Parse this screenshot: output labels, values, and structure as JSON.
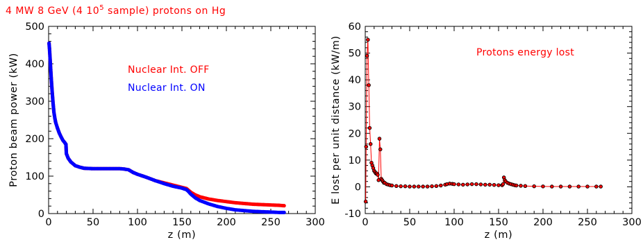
{
  "page_title": "4 MW 8 GeV (4 10",
  "page_title_sup": "5",
  "page_title_tail": " sample) protons on Hg",
  "colors": {
    "red": "#ff0000",
    "blue": "#0000ff",
    "black": "#000000",
    "title": "#ff0000"
  },
  "chart_data": [
    {
      "type": "scatter",
      "xlabel": "z (m)",
      "ylabel": "Proton beam power (kW)",
      "xlim": [
        0,
        300
      ],
      "ylim": [
        0,
        500
      ],
      "xticks": [
        0,
        50,
        100,
        150,
        200,
        250,
        300
      ],
      "yticks": [
        0,
        100,
        200,
        300,
        400,
        500
      ],
      "grid": false,
      "legend_placement": "upper-right",
      "series": [
        {
          "name": "Nuclear Int. OFF",
          "color": "#ff0000",
          "x": [
            0.5,
            1,
            2,
            3,
            4,
            5,
            6,
            7,
            8,
            10,
            12,
            14,
            16,
            18,
            19.5,
            20,
            21,
            22,
            25,
            30,
            35,
            40,
            50,
            60,
            70,
            80,
            85,
            90,
            95,
            100,
            110,
            120,
            130,
            140,
            150,
            155,
            157,
            160,
            165,
            170,
            180,
            190,
            200,
            210,
            220,
            230,
            240,
            250,
            260,
            265
          ],
          "y": [
            455,
            440,
            400,
            360,
            325,
            295,
            270,
            255,
            243,
            228,
            215,
            205,
            196,
            190,
            185,
            160,
            154,
            148,
            138,
            128,
            124,
            121,
            120,
            120,
            120,
            120,
            119,
            117,
            110,
            105,
            97,
            88,
            82,
            76,
            70,
            67,
            63,
            57,
            50,
            45,
            39,
            35,
            32,
            29,
            27,
            25,
            24,
            23,
            22,
            21
          ]
        },
        {
          "name": "Nuclear Int. ON",
          "color": "#0000ff",
          "x": [
            0.5,
            1,
            2,
            3,
            4,
            5,
            6,
            7,
            8,
            10,
            12,
            14,
            16,
            18,
            19.5,
            20,
            21,
            22,
            25,
            30,
            35,
            40,
            50,
            60,
            70,
            80,
            85,
            90,
            95,
            100,
            110,
            120,
            130,
            140,
            150,
            155,
            157,
            160,
            165,
            170,
            180,
            190,
            200,
            210,
            220,
            230,
            240,
            250,
            260,
            265
          ],
          "y": [
            455,
            440,
            400,
            360,
            325,
            295,
            270,
            255,
            243,
            228,
            215,
            205,
            196,
            190,
            185,
            160,
            154,
            148,
            138,
            128,
            124,
            121,
            120,
            120,
            120,
            120,
            119,
            117,
            110,
            105,
            97,
            88,
            80,
            73,
            68,
            64,
            60,
            52,
            42,
            35,
            26,
            19,
            14,
            10,
            8,
            6,
            5,
            4,
            3,
            3
          ]
        }
      ]
    },
    {
      "type": "line",
      "xlabel": "z (m)",
      "ylabel": "E lost per unit distance (kW/m)",
      "xlim": [
        0,
        300
      ],
      "ylim": [
        -10,
        60
      ],
      "xticks": [
        0,
        50,
        100,
        150,
        200,
        250,
        300
      ],
      "yticks": [
        -10,
        0,
        10,
        20,
        30,
        40,
        50,
        60
      ],
      "grid": false,
      "annotation": "Protons energy lost",
      "series": [
        {
          "color": "#ff0000",
          "marker_color": "#000000",
          "x": [
            0.5,
            1,
            2,
            3,
            4,
            5,
            6,
            7,
            8,
            9,
            10,
            11,
            12,
            13,
            14,
            15,
            16,
            17,
            18,
            19,
            20,
            21,
            22,
            24,
            26,
            28,
            30,
            35,
            40,
            45,
            50,
            55,
            60,
            65,
            70,
            75,
            80,
            85,
            90,
            92,
            95,
            98,
            100,
            105,
            110,
            115,
            120,
            125,
            130,
            135,
            140,
            145,
            150,
            154,
            155,
            156,
            157,
            158,
            160,
            162,
            164,
            166,
            168,
            170,
            175,
            180,
            190,
            200,
            210,
            220,
            230,
            240,
            250,
            260,
            265
          ],
          "y": [
            -5.5,
            15,
            49,
            55,
            38,
            22,
            16,
            9,
            8,
            7,
            6,
            5.5,
            5,
            5,
            4.5,
            2.5,
            18,
            14,
            3,
            2.5,
            2,
            1.5,
            1.5,
            1,
            0.8,
            0.6,
            0.5,
            0.3,
            0.2,
            0.2,
            0.1,
            0.1,
            0.1,
            0.1,
            0.1,
            0.2,
            0.3,
            0.5,
            0.8,
            1,
            1.2,
            1.1,
            1,
            0.9,
            0.8,
            0.9,
            1,
            1,
            0.9,
            0.8,
            0.8,
            0.7,
            0.6,
            0.6,
            1,
            3.5,
            2.5,
            2,
            1.5,
            1.2,
            1,
            0.8,
            0.6,
            0.5,
            0.4,
            0.3,
            0.2,
            0.15,
            0.1,
            0.1,
            0.1,
            0.1,
            0.1,
            0.1,
            0.1
          ]
        }
      ]
    }
  ]
}
